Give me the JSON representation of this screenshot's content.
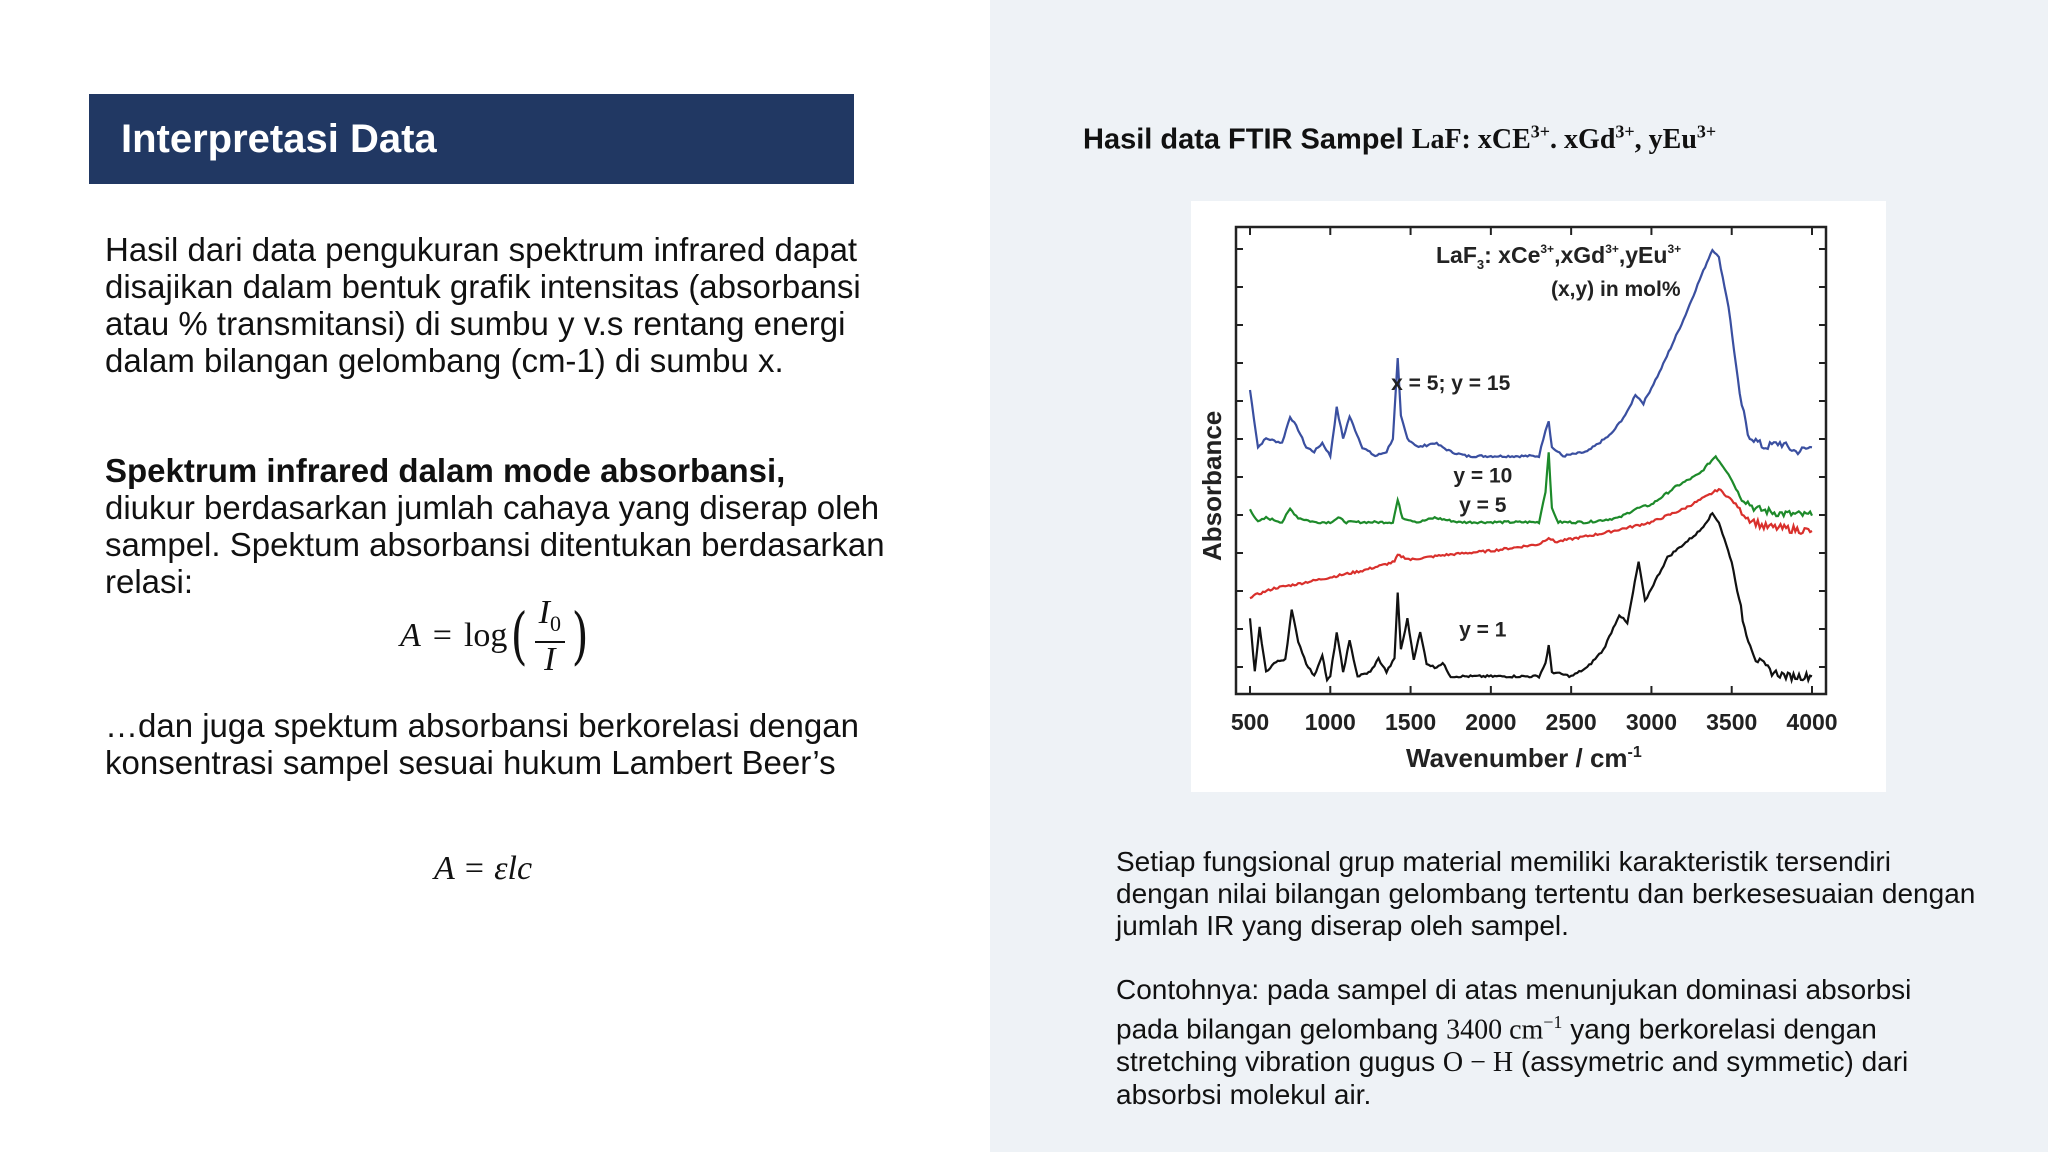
{
  "left": {
    "title": "Interpretasi Data",
    "para1": "Hasil dari data pengukuran spektrum infrared dapat disajikan dalam  bentuk grafik intensitas (absorbansi atau % transmitansi) di sumbu y v.s rentang energi dalam bilangan gelombang (cm-1) di sumbu x.",
    "para2_bold": "Spektrum infrared dalam mode absorbansi,",
    "para2_rest": "diukur berdasarkan jumlah cahaya yang diserap oleh sampel. Spektum absorbansi ditentukan berdasarkan relasi:",
    "formula1": {
      "lhs": "A",
      "eq": "=",
      "fn": "log",
      "num_main": "I",
      "num_sub": "0",
      "den": "I"
    },
    "para3": "…dan juga spektum absorbansi berkorelasi dengan konsentrasi sampel sesuai hukum Lambert Beer’s",
    "formula2": "A = εlc"
  },
  "right": {
    "heading_text": "Hasil data FTIR Sampel ",
    "heading_formula": {
      "p1": "LaF",
      "p2": ": xCE",
      "s1": "3+",
      "p3": ". xGd",
      "s2": "3+",
      "p4": ", yEu",
      "s3": "3+"
    },
    "note1": "Setiap fungsional grup material memiliki karakteristik tersendiri dengan nilai bilangan gelombang tertentu dan berkesesuaian dengan jumlah IR yang diserap oleh sampel.",
    "note2_a": "Contohnya: pada sampel di atas menunjukan dominasi absorbsi pada bilangan gelombang ",
    "note2_wn": "3400 cm",
    "note2_wn_sup": "−1",
    "note2_b": " yang berkorelasi dengan stretching vibration gugus ",
    "note2_oh": "O − H",
    "note2_c": " (assymetric and symmetic) dari absorbsi molekul air."
  },
  "chart_data": {
    "type": "line",
    "title": "",
    "legend_title_main": "LaF",
    "legend_title_sub": "3",
    "legend_title_rest": ": xCe",
    "legend_title_sup1": "3+",
    "legend_title_mid": ",xGd",
    "legend_title_sup2": "3+",
    "legend_title_end": ",yEu",
    "legend_title_sup3": "3+",
    "legend_subtitle": "(x,y) in mol%",
    "xlabel": "Wavenumber / cm",
    "xlabel_sup": "-1",
    "ylabel": "Absorbance",
    "xlim": [
      500,
      4000
    ],
    "x_ticks": [
      "500",
      "1000",
      "1500",
      "2000",
      "2500",
      "3000",
      "3500",
      "4000"
    ],
    "series": [
      {
        "name": "x = 5; y = 15",
        "color": "#3a4fa0",
        "offset": 5.1,
        "points": [
          [
            500,
            1.6
          ],
          [
            550,
            0.3
          ],
          [
            600,
            0.5
          ],
          [
            700,
            0.4
          ],
          [
            750,
            1.0
          ],
          [
            800,
            0.7
          ],
          [
            850,
            0.3
          ],
          [
            900,
            0.2
          ],
          [
            950,
            0.4
          ],
          [
            1000,
            0.1
          ],
          [
            1040,
            1.2
          ],
          [
            1080,
            0.5
          ],
          [
            1120,
            1.0
          ],
          [
            1200,
            0.3
          ],
          [
            1280,
            0.1
          ],
          [
            1350,
            0.2
          ],
          [
            1390,
            0.5
          ],
          [
            1420,
            2.3
          ],
          [
            1440,
            1.0
          ],
          [
            1480,
            0.5
          ],
          [
            1550,
            0.3
          ],
          [
            1650,
            0.4
          ],
          [
            1750,
            0.2
          ],
          [
            1850,
            0.1
          ],
          [
            2000,
            0.1
          ],
          [
            2300,
            0.1
          ],
          [
            2340,
            0.7
          ],
          [
            2360,
            0.9
          ],
          [
            2380,
            0.3
          ],
          [
            2450,
            0.1
          ],
          [
            2600,
            0.2
          ],
          [
            2750,
            0.6
          ],
          [
            2850,
            1.1
          ],
          [
            2900,
            1.5
          ],
          [
            2950,
            1.3
          ],
          [
            3050,
            2.0
          ],
          [
            3200,
            3.2
          ],
          [
            3300,
            4.1
          ],
          [
            3380,
            4.8
          ],
          [
            3420,
            4.6
          ],
          [
            3480,
            3.5
          ],
          [
            3550,
            1.5
          ],
          [
            3600,
            0.6
          ],
          [
            3700,
            0.3
          ],
          [
            3800,
            0.4
          ],
          [
            3900,
            0.2
          ],
          [
            4000,
            0.3
          ]
        ]
      },
      {
        "name": "y = 10",
        "color": "#1d8a2a",
        "offset": 3.6,
        "points": [
          [
            500,
            0.4
          ],
          [
            550,
            0.1
          ],
          [
            600,
            0.2
          ],
          [
            700,
            0.1
          ],
          [
            750,
            0.4
          ],
          [
            800,
            0.2
          ],
          [
            900,
            0.1
          ],
          [
            1000,
            0.1
          ],
          [
            1050,
            0.2
          ],
          [
            1100,
            0.1
          ],
          [
            1200,
            0.1
          ],
          [
            1300,
            0.1
          ],
          [
            1390,
            0.1
          ],
          [
            1420,
            0.6
          ],
          [
            1450,
            0.2
          ],
          [
            1550,
            0.1
          ],
          [
            1650,
            0.2
          ],
          [
            1800,
            0.1
          ],
          [
            2000,
            0.1
          ],
          [
            2300,
            0.1
          ],
          [
            2340,
            0.8
          ],
          [
            2360,
            1.7
          ],
          [
            2380,
            0.4
          ],
          [
            2420,
            0.1
          ],
          [
            2600,
            0.1
          ],
          [
            2800,
            0.2
          ],
          [
            2900,
            0.4
          ],
          [
            3000,
            0.5
          ],
          [
            3150,
            0.9
          ],
          [
            3300,
            1.2
          ],
          [
            3400,
            1.6
          ],
          [
            3480,
            1.2
          ],
          [
            3550,
            0.7
          ],
          [
            3650,
            0.4
          ],
          [
            3800,
            0.3
          ],
          [
            4000,
            0.25
          ]
        ]
      },
      {
        "name": "y = 5",
        "color": "#d9302c",
        "offset": 2.0,
        "points": [
          [
            500,
            0.0
          ],
          [
            650,
            0.2
          ],
          [
            800,
            0.3
          ],
          [
            1000,
            0.45
          ],
          [
            1200,
            0.6
          ],
          [
            1400,
            0.8
          ],
          [
            1420,
            0.95
          ],
          [
            1500,
            0.85
          ],
          [
            1700,
            0.95
          ],
          [
            2000,
            1.05
          ],
          [
            2300,
            1.2
          ],
          [
            2360,
            1.35
          ],
          [
            2400,
            1.25
          ],
          [
            2700,
            1.45
          ],
          [
            3000,
            1.7
          ],
          [
            3200,
            2.0
          ],
          [
            3350,
            2.3
          ],
          [
            3420,
            2.45
          ],
          [
            3500,
            2.2
          ],
          [
            3600,
            1.8
          ],
          [
            3700,
            1.6
          ],
          [
            3850,
            1.55
          ],
          [
            4000,
            1.5
          ]
        ]
      },
      {
        "name": "y = 1",
        "color": "#111111",
        "offset": 0.0,
        "points": [
          [
            500,
            1.5
          ],
          [
            530,
            0.3
          ],
          [
            560,
            1.3
          ],
          [
            600,
            0.3
          ],
          [
            650,
            0.5
          ],
          [
            720,
            0.6
          ],
          [
            760,
            1.7
          ],
          [
            800,
            1.0
          ],
          [
            850,
            0.5
          ],
          [
            900,
            0.2
          ],
          [
            950,
            0.7
          ],
          [
            980,
            0.1
          ],
          [
            1000,
            0.2
          ],
          [
            1040,
            1.2
          ],
          [
            1080,
            0.3
          ],
          [
            1120,
            1.0
          ],
          [
            1170,
            0.2
          ],
          [
            1250,
            0.3
          ],
          [
            1300,
            0.6
          ],
          [
            1350,
            0.3
          ],
          [
            1400,
            0.6
          ],
          [
            1420,
            2.1
          ],
          [
            1440,
            0.8
          ],
          [
            1480,
            1.5
          ],
          [
            1520,
            0.6
          ],
          [
            1560,
            1.2
          ],
          [
            1600,
            0.5
          ],
          [
            1650,
            0.4
          ],
          [
            1700,
            0.5
          ],
          [
            1750,
            0.2
          ],
          [
            1850,
            0.2
          ],
          [
            2000,
            0.2
          ],
          [
            2300,
            0.2
          ],
          [
            2340,
            0.5
          ],
          [
            2360,
            0.9
          ],
          [
            2380,
            0.3
          ],
          [
            2500,
            0.2
          ],
          [
            2600,
            0.4
          ],
          [
            2700,
            0.8
          ],
          [
            2800,
            1.6
          ],
          [
            2850,
            1.4
          ],
          [
            2920,
            2.8
          ],
          [
            2960,
            1.9
          ],
          [
            3000,
            2.2
          ],
          [
            3100,
            2.9
          ],
          [
            3200,
            3.2
          ],
          [
            3300,
            3.5
          ],
          [
            3380,
            3.9
          ],
          [
            3420,
            3.7
          ],
          [
            3500,
            2.8
          ],
          [
            3580,
            1.3
          ],
          [
            3650,
            0.6
          ],
          [
            3750,
            0.3
          ],
          [
            3850,
            0.2
          ],
          [
            4000,
            0.2
          ]
        ]
      }
    ],
    "ylim": [
      -0.2,
      10.4
    ]
  }
}
